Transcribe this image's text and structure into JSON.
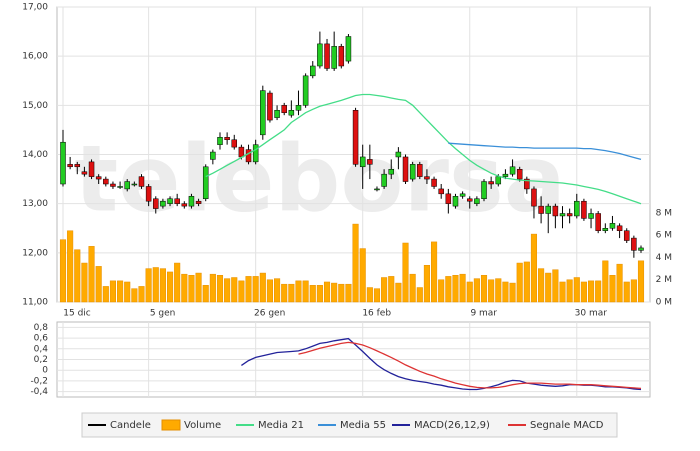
{
  "chart_data": [
    {
      "type": "candlestick",
      "watermark": "teleborsa",
      "categories": [
        "15 dic",
        null,
        null,
        null,
        null,
        null,
        null,
        null,
        null,
        null,
        null,
        null,
        "5 gen",
        null,
        null,
        null,
        null,
        null,
        null,
        null,
        null,
        null,
        null,
        null,
        null,
        null,
        null,
        "26 gen",
        null,
        null,
        null,
        null,
        null,
        null,
        null,
        null,
        null,
        null,
        null,
        null,
        null,
        null,
        "16 feb",
        null,
        null,
        null,
        null,
        null,
        null,
        null,
        null,
        null,
        null,
        null,
        null,
        null,
        null,
        "9 mar",
        null,
        null,
        null,
        null,
        null,
        null,
        null,
        null,
        null,
        null,
        null,
        null,
        null,
        null,
        "30 mar",
        null,
        null,
        null,
        null,
        null,
        null,
        null,
        null,
        null
      ],
      "ylim": [
        11,
        17
      ],
      "yticks": [
        {
          "value": 11,
          "label": "11,00"
        },
        {
          "value": 12,
          "label": "12,00"
        },
        {
          "value": 13,
          "label": "13,00"
        },
        {
          "value": 14,
          "label": "14,00"
        },
        {
          "value": 15,
          "label": "15,00"
        },
        {
          "value": 16,
          "label": "16,00"
        },
        {
          "value": 17,
          "label": "17,00"
        }
      ],
      "y2lim": [
        0,
        26.5
      ],
      "y2ticks": [
        {
          "value": 0,
          "label": "0 M"
        },
        {
          "value": 2,
          "label": "2 M"
        },
        {
          "value": 4,
          "label": "4 M"
        },
        {
          "value": 6,
          "label": "6 M"
        },
        {
          "value": 8,
          "label": "8 M"
        }
      ],
      "grid": true,
      "series": [
        {
          "name": "Candele",
          "type": "candlestick",
          "color": "#000000",
          "up_color": "#22cc22",
          "down_color": "#dd1111",
          "open": [
            13.4,
            13.8,
            13.8,
            13.65,
            13.85,
            13.55,
            13.5,
            13.4,
            13.35,
            13.3,
            13.4,
            13.55,
            13.35,
            13.1,
            12.95,
            13.0,
            13.1,
            13.0,
            12.95,
            13.05,
            13.1,
            13.9,
            14.2,
            14.35,
            14.3,
            14.15,
            14.1,
            13.85,
            14.4,
            15.25,
            14.75,
            15.0,
            14.8,
            14.9,
            15.0,
            15.6,
            15.8,
            16.25,
            15.75,
            16.2,
            15.9,
            14.9,
            13.75,
            13.9,
            13.3,
            13.35,
            13.6,
            13.95,
            13.95,
            13.5,
            13.8,
            13.55,
            13.5,
            13.3,
            13.2,
            12.95,
            13.15,
            13.1,
            13.0,
            13.1,
            13.45,
            13.4,
            13.55,
            13.6,
            13.7,
            13.5,
            13.3,
            12.95,
            12.8,
            12.95,
            12.75,
            12.8,
            12.75,
            13.05,
            12.7,
            12.8,
            12.45,
            12.5,
            12.55,
            12.45,
            12.3,
            12.05
          ],
          "high": [
            14.5,
            13.95,
            13.85,
            13.75,
            13.9,
            13.6,
            13.55,
            13.45,
            13.45,
            13.5,
            13.45,
            13.6,
            13.4,
            13.15,
            13.1,
            13.15,
            13.2,
            13.05,
            13.2,
            13.1,
            13.8,
            14.1,
            14.45,
            14.45,
            14.4,
            14.2,
            14.2,
            14.3,
            15.4,
            15.3,
            15.0,
            15.05,
            15.1,
            15.3,
            15.65,
            15.9,
            16.5,
            16.35,
            16.5,
            16.25,
            16.45,
            14.95,
            14.2,
            14.2,
            13.35,
            13.7,
            13.9,
            14.15,
            14.0,
            13.85,
            13.85,
            13.7,
            13.55,
            13.4,
            13.3,
            13.2,
            13.25,
            13.15,
            13.15,
            13.5,
            13.55,
            13.6,
            13.7,
            13.9,
            13.75,
            13.55,
            13.35,
            13.15,
            13.0,
            13.0,
            12.95,
            12.9,
            13.2,
            13.1,
            12.9,
            12.85,
            12.6,
            12.75,
            12.6,
            12.5,
            12.35,
            12.15
          ],
          "low": [
            13.35,
            13.7,
            13.6,
            13.55,
            13.5,
            13.4,
            13.35,
            13.3,
            13.3,
            13.25,
            13.35,
            13.3,
            12.95,
            12.8,
            12.9,
            12.95,
            12.95,
            12.9,
            12.9,
            12.95,
            13.05,
            13.8,
            14.1,
            14.2,
            14.1,
            13.9,
            13.8,
            13.8,
            14.3,
            14.65,
            14.7,
            14.8,
            14.75,
            14.8,
            14.95,
            15.55,
            15.75,
            15.7,
            15.7,
            15.75,
            15.85,
            13.75,
            13.3,
            13.5,
            13.25,
            13.3,
            13.5,
            13.7,
            13.4,
            13.45,
            13.5,
            13.4,
            13.3,
            13.1,
            12.8,
            12.9,
            13.1,
            12.9,
            12.95,
            13.05,
            13.3,
            13.35,
            13.5,
            13.55,
            13.45,
            13.2,
            12.7,
            12.6,
            12.4,
            12.5,
            12.5,
            12.6,
            12.7,
            12.65,
            12.5,
            12.4,
            12.4,
            12.45,
            12.3,
            12.2,
            11.9,
            12.0
          ],
          "close": [
            14.25,
            13.75,
            13.75,
            13.6,
            13.55,
            13.5,
            13.4,
            13.35,
            13.35,
            13.45,
            13.4,
            13.35,
            13.05,
            12.9,
            13.05,
            13.1,
            13.0,
            12.95,
            13.15,
            13.0,
            13.75,
            14.05,
            14.35,
            14.3,
            14.15,
            13.95,
            13.85,
            14.2,
            15.3,
            14.7,
            14.9,
            14.85,
            14.9,
            15.0,
            15.6,
            15.8,
            16.25,
            15.75,
            16.2,
            15.8,
            16.4,
            13.8,
            13.95,
            13.8,
            13.3,
            13.6,
            13.7,
            14.05,
            13.45,
            13.8,
            13.55,
            13.5,
            13.35,
            13.2,
            13.0,
            13.15,
            13.2,
            13.05,
            13.1,
            13.45,
            13.4,
            13.55,
            13.6,
            13.75,
            13.5,
            13.3,
            12.95,
            12.8,
            12.95,
            12.75,
            12.8,
            12.75,
            13.05,
            12.7,
            12.8,
            12.45,
            12.5,
            12.6,
            12.45,
            12.25,
            12.05,
            12.1
          ]
        },
        {
          "name": "Volume",
          "type": "bar",
          "axis": "y2",
          "color": "#ffaa00",
          "values": [
            5.6,
            6.4,
            4.7,
            3.5,
            5.0,
            3.2,
            1.4,
            1.9,
            1.9,
            1.8,
            1.2,
            1.4,
            3.0,
            3.1,
            3.0,
            2.7,
            3.5,
            2.5,
            2.4,
            2.6,
            1.5,
            2.5,
            2.4,
            2.1,
            2.2,
            1.9,
            2.3,
            2.3,
            2.6,
            2.0,
            2.1,
            1.6,
            1.6,
            1.9,
            1.9,
            1.5,
            1.5,
            1.8,
            1.7,
            1.6,
            1.6,
            7.0,
            4.8,
            1.3,
            1.2,
            2.2,
            2.3,
            1.7,
            5.3,
            2.5,
            1.3,
            3.3,
            5.4,
            2.0,
            2.3,
            2.4,
            2.5,
            1.8,
            2.1,
            2.4,
            2.0,
            2.1,
            1.8,
            1.7,
            3.5,
            3.6,
            6.1,
            3.0,
            2.6,
            2.9,
            1.8,
            2.0,
            2.2,
            1.8,
            1.9,
            1.9,
            3.7,
            2.4,
            3.4,
            1.8,
            2.0,
            3.7
          ]
        },
        {
          "name": "Media 21",
          "type": "line",
          "color": "#44dd88",
          "values": [
            null,
            null,
            null,
            null,
            null,
            null,
            null,
            null,
            null,
            null,
            null,
            null,
            null,
            null,
            null,
            null,
            null,
            null,
            null,
            null,
            13.55,
            13.62,
            13.7,
            13.78,
            13.86,
            13.94,
            14.02,
            14.1,
            14.2,
            14.3,
            14.4,
            14.5,
            14.65,
            14.75,
            14.85,
            14.92,
            14.98,
            15.02,
            15.06,
            15.1,
            15.15,
            15.2,
            15.22,
            15.22,
            15.2,
            15.18,
            15.15,
            15.12,
            15.1,
            15.0,
            14.85,
            14.7,
            14.55,
            14.4,
            14.25,
            14.12,
            14.0,
            13.88,
            13.78,
            13.7,
            13.62,
            13.56,
            13.52,
            13.5,
            13.48,
            13.47,
            13.46,
            13.45,
            13.44,
            13.43,
            13.42,
            13.4,
            13.38,
            13.35,
            13.32,
            13.29,
            13.25,
            13.2,
            13.15,
            13.1,
            13.05,
            13.0
          ]
        },
        {
          "name": "Media 55",
          "type": "line",
          "color": "#3a8fd8",
          "values": [
            null,
            null,
            null,
            null,
            null,
            null,
            null,
            null,
            null,
            null,
            null,
            null,
            null,
            null,
            null,
            null,
            null,
            null,
            null,
            null,
            null,
            null,
            null,
            null,
            null,
            null,
            null,
            null,
            null,
            null,
            null,
            null,
            null,
            null,
            null,
            null,
            null,
            null,
            null,
            null,
            null,
            null,
            null,
            null,
            null,
            null,
            null,
            null,
            null,
            null,
            null,
            null,
            null,
            null,
            14.23,
            14.22,
            14.21,
            14.2,
            14.19,
            14.18,
            14.17,
            14.16,
            14.15,
            14.15,
            14.14,
            14.14,
            14.13,
            14.13,
            14.13,
            14.13,
            14.13,
            14.13,
            14.13,
            14.12,
            14.12,
            14.1,
            14.08,
            14.05,
            14.02,
            13.98,
            13.94,
            13.9
          ]
        }
      ]
    },
    {
      "type": "line",
      "ylim": [
        -0.5,
        0.9
      ],
      "yticks": [
        {
          "value": -0.4,
          "label": "-0,4"
        },
        {
          "value": -0.2,
          "label": "-0,2"
        },
        0,
        {
          "value": 0.2,
          "label": "0,2"
        },
        {
          "value": 0.4,
          "label": "0,4"
        },
        {
          "value": 0.6,
          "label": "0,6"
        },
        {
          "value": 0.8,
          "label": "0,8"
        }
      ],
      "grid": true,
      "series": [
        {
          "name": "MACD(26,12,9)",
          "color": "#22229a",
          "values": [
            null,
            null,
            null,
            null,
            null,
            null,
            null,
            null,
            null,
            null,
            null,
            null,
            null,
            null,
            null,
            null,
            null,
            null,
            null,
            null,
            null,
            null,
            null,
            null,
            null,
            0.09,
            0.18,
            0.24,
            0.27,
            0.3,
            0.33,
            0.34,
            0.35,
            0.36,
            0.4,
            0.45,
            0.5,
            0.52,
            0.55,
            0.57,
            0.59,
            0.47,
            0.35,
            0.22,
            0.1,
            0.01,
            -0.06,
            -0.12,
            -0.16,
            -0.19,
            -0.21,
            -0.23,
            -0.26,
            -0.28,
            -0.31,
            -0.33,
            -0.35,
            -0.36,
            -0.36,
            -0.34,
            -0.31,
            -0.27,
            -0.22,
            -0.19,
            -0.2,
            -0.24,
            -0.26,
            -0.28,
            -0.29,
            -0.3,
            -0.29,
            -0.27,
            -0.27,
            -0.28,
            -0.28,
            -0.29,
            -0.31,
            -0.31,
            -0.32,
            -0.33,
            -0.35,
            -0.36
          ]
        },
        {
          "name": "Segnale MACD",
          "color": "#dd3333",
          "values": [
            null,
            null,
            null,
            null,
            null,
            null,
            null,
            null,
            null,
            null,
            null,
            null,
            null,
            null,
            null,
            null,
            null,
            null,
            null,
            null,
            null,
            null,
            null,
            null,
            null,
            null,
            null,
            null,
            null,
            null,
            null,
            null,
            null,
            0.3,
            0.33,
            0.37,
            0.41,
            0.44,
            0.47,
            0.5,
            0.52,
            0.5,
            0.47,
            0.42,
            0.36,
            0.3,
            0.24,
            0.17,
            0.1,
            0.04,
            -0.02,
            -0.07,
            -0.11,
            -0.16,
            -0.2,
            -0.24,
            -0.27,
            -0.3,
            -0.32,
            -0.33,
            -0.33,
            -0.32,
            -0.3,
            -0.27,
            -0.25,
            -0.24,
            -0.24,
            -0.24,
            -0.25,
            -0.26,
            -0.26,
            -0.26,
            -0.27,
            -0.27,
            -0.27,
            -0.28,
            -0.29,
            -0.3,
            -0.31,
            -0.32,
            -0.33,
            -0.34
          ]
        }
      ]
    }
  ]
}
